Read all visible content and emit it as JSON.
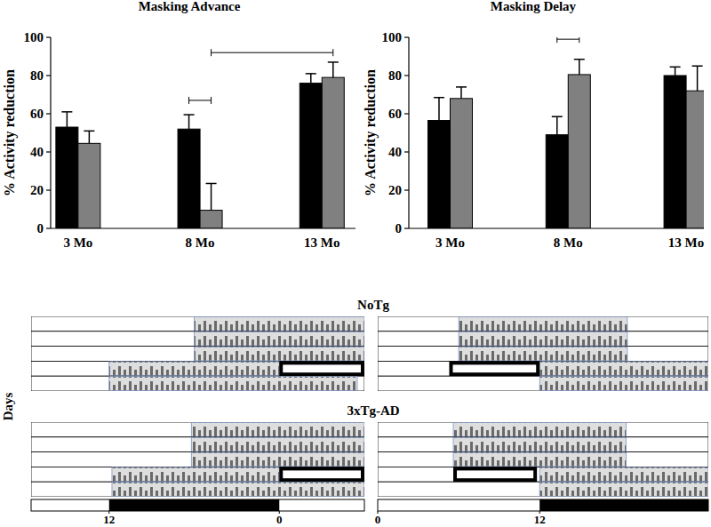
{
  "chart_data": [
    {
      "type": "bar",
      "title": "Masking Advance",
      "y_label": "% Activity reduction",
      "categories": [
        "3 Mo",
        "8 Mo",
        "13 Mo"
      ],
      "series": [
        {
          "color": "#000000",
          "values": [
            53,
            52,
            76
          ],
          "errors": [
            8,
            7.5,
            5
          ]
        },
        {
          "color": "#808080",
          "values": [
            44.5,
            9.5,
            79
          ],
          "errors": [
            6.5,
            14,
            8
          ]
        }
      ],
      "ylim": [
        0,
        100
      ],
      "yticks": [
        0,
        20,
        40,
        60,
        80,
        100
      ],
      "brackets": [
        {
          "from": [
            1,
            0
          ],
          "to": [
            1,
            1
          ],
          "y": 67
        },
        {
          "from": [
            1,
            1
          ],
          "to": [
            2,
            1
          ],
          "y": 92
        }
      ]
    },
    {
      "type": "bar",
      "title": "Masking Delay",
      "y_label": "% Activity reduction",
      "categories": [
        "3 Mo",
        "8 Mo",
        "13 Mo"
      ],
      "series": [
        {
          "color": "#000000",
          "values": [
            56.5,
            49,
            80
          ],
          "errors": [
            12,
            9.5,
            4.5
          ]
        },
        {
          "color": "#808080",
          "values": [
            68,
            80.5,
            72
          ],
          "errors": [
            6,
            8,
            13
          ]
        }
      ],
      "ylim": [
        0,
        100
      ],
      "yticks": [
        0,
        20,
        40,
        60,
        80,
        100
      ],
      "brackets": [
        {
          "from": [
            1,
            0
          ],
          "to": [
            1,
            1
          ],
          "y": 99
        }
      ]
    },
    {
      "type": "actogram",
      "y_label": "Days",
      "panels": [
        {
          "xlim": [
            6.5,
            30
          ],
          "xticks": [
            {
              "value": 12,
              "label": "12"
            },
            {
              "value": 24,
              "label": "0"
            }
          ],
          "dark": [
            12,
            24
          ]
        },
        {
          "xlim": [
            0,
            24.5
          ],
          "xticks": [
            0,
            12
          ],
          "dark": [
            12,
            24.5
          ]
        }
      ],
      "groups": [
        {
          "title": "NoTg",
          "panels": [
            [
              {
                "active": [
                  18,
                  30
                ]
              },
              {
                "active": [
                  18,
                  30
                ]
              },
              {
                "active": [
                  18,
                  30
                ]
              },
              {
                "active": [
                  12,
                  24
                ],
                "pulse": [
                  24,
                  30
                ]
              },
              {
                "active": [
                  12,
                  29.5
                ]
              }
            ],
            [
              {
                "active": [
                  6,
                  18.5
                ]
              },
              {
                "active": [
                  6,
                  18.5
                ]
              },
              {
                "active": [
                  6,
                  18.5
                ]
              },
              {
                "active": [
                  12,
                  24.5
                ],
                "pulse": [
                  5.3,
                  12
                ]
              },
              {
                "active": [
                  12,
                  24.5
                ]
              }
            ]
          ]
        },
        {
          "title": "3xTg-AD",
          "panels": [
            [
              {
                "active": [
                  17.8,
                  30
                ]
              },
              {
                "active": [
                  17.8,
                  30
                ]
              },
              {
                "active": [
                  17.8,
                  30
                ]
              },
              {
                "active": [
                  12.2,
                  24
                ],
                "pulse": [
                  24,
                  30
                ]
              },
              {
                "active": [
                  12.2,
                  30
                ]
              }
            ],
            [
              {
                "active": [
                  5.6,
                  18.4
                ]
              },
              {
                "active": [
                  5.6,
                  18.4
                ]
              },
              {
                "active": [
                  5.6,
                  18.4
                ]
              },
              {
                "active": [
                  12,
                  24.5
                ],
                "pulse": [
                  5.6,
                  11.8
                ]
              },
              {
                "active": [
                  12,
                  24.5
                ]
              }
            ]
          ]
        }
      ]
    }
  ]
}
